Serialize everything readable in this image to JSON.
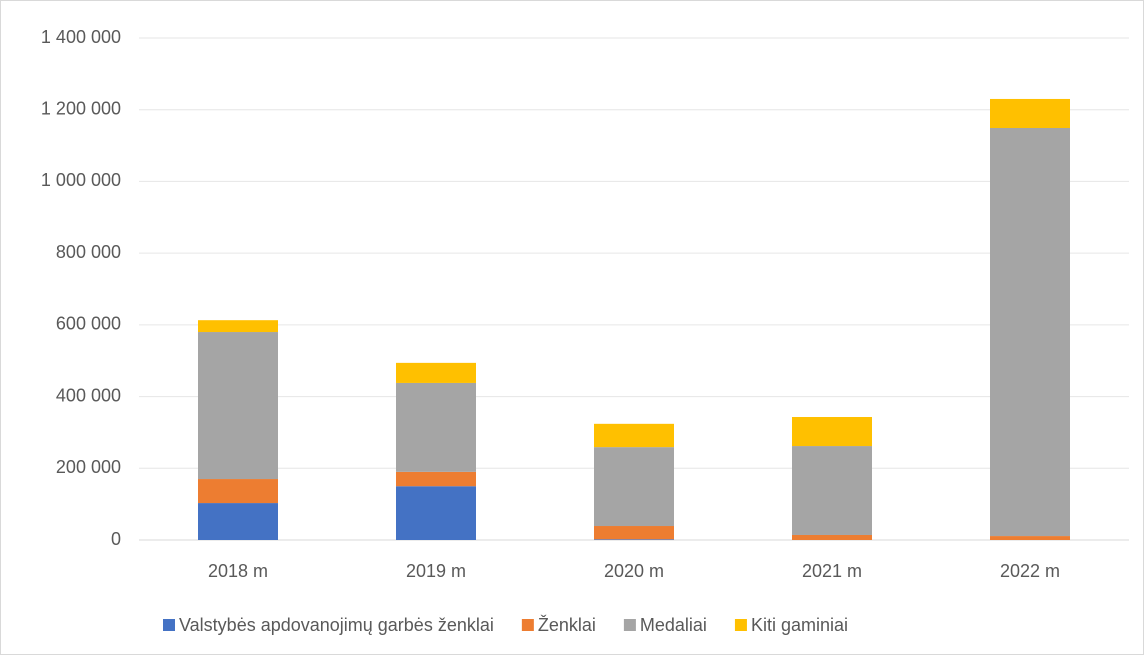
{
  "chart_data": {
    "type": "stacked_bar",
    "categories": [
      "2018 m",
      "2019 m",
      "2020 m",
      "2021 m",
      "2022 m"
    ],
    "series": [
      {
        "name": "Valstybės apdovanojimų garbės ženklai",
        "color": "#4472c4",
        "values": [
          103000,
          150000,
          2000,
          0,
          0
        ]
      },
      {
        "name": "Ženklai",
        "color": "#ed7d31",
        "values": [
          67000,
          40000,
          37000,
          14000,
          11000
        ]
      },
      {
        "name": "Medaliai",
        "color": "#a5a5a5",
        "values": [
          410000,
          248000,
          220000,
          248000,
          1138000
        ]
      },
      {
        "name": "Kiti gaminiai",
        "color": "#ffc000",
        "values": [
          33000,
          56000,
          65000,
          81000,
          81000
        ]
      }
    ],
    "ylim": [
      0,
      1400000
    ],
    "yticks": [
      0,
      {
        "value": 200000,
        "label": "200 000"
      },
      {
        "value": 400000,
        "label": "400 000"
      },
      {
        "value": 600000,
        "label": "600 000"
      },
      {
        "value": 800000,
        "label": "800 000"
      },
      {
        "value": 1000000,
        "label": "1 000 000"
      },
      {
        "value": 1200000,
        "label": "1 200 000"
      },
      {
        "value": 1400000,
        "label": "1 400 000"
      }
    ],
    "grid": true,
    "legend": "bottom"
  }
}
